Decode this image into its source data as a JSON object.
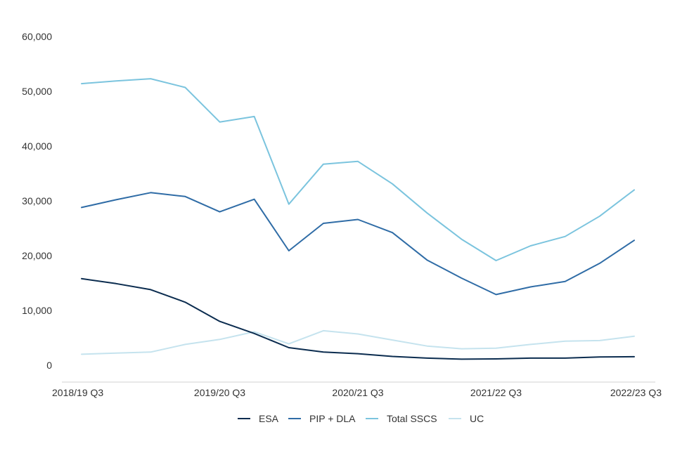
{
  "chart_data": {
    "type": "line",
    "title": "",
    "xlabel": "",
    "ylabel": "",
    "ylim": [
      0,
      60000
    ],
    "y_ticks": [
      0,
      10000,
      20000,
      30000,
      40000,
      50000,
      60000
    ],
    "y_tick_labels": [
      "0",
      "10,000",
      "20,000",
      "30,000",
      "40,000",
      "50,000",
      "60,000"
    ],
    "x_tick_labels": [
      "2018/19 Q3",
      "2019/20 Q3",
      "2020/21 Q3",
      "2021/22 Q3",
      "2022/23 Q3"
    ],
    "x_tick_positions": [
      0,
      4,
      8,
      12,
      16
    ],
    "num_points": 17,
    "grid": false,
    "legend_position": "bottom",
    "series": [
      {
        "name": "ESA",
        "color": "#0b2c4f",
        "values": [
          15800,
          14900,
          13800,
          11500,
          8000,
          5800,
          3200,
          2400,
          2100,
          1600,
          1300,
          1100,
          1150,
          1300,
          1300,
          1500,
          1550
        ]
      },
      {
        "name": "PIP + DLA",
        "color": "#2f6ca6",
        "values": [
          28800,
          30200,
          31500,
          30800,
          28000,
          30300,
          20900,
          25900,
          26600,
          24200,
          19200,
          15900,
          12900,
          14300,
          15300,
          18600,
          22800
        ]
      },
      {
        "name": "Total SSCS",
        "color": "#7bc4de",
        "values": [
          51400,
          51900,
          52300,
          50700,
          44400,
          45400,
          29400,
          36700,
          37200,
          33100,
          27800,
          23000,
          19100,
          21800,
          23500,
          27200,
          32000
        ]
      },
      {
        "name": "UC",
        "color": "#c5e3ee",
        "values": [
          2000,
          2200,
          2400,
          3800,
          4700,
          6100,
          3900,
          6300,
          5700,
          4600,
          3500,
          3000,
          3100,
          3800,
          4400,
          4500,
          5300
        ]
      }
    ]
  }
}
